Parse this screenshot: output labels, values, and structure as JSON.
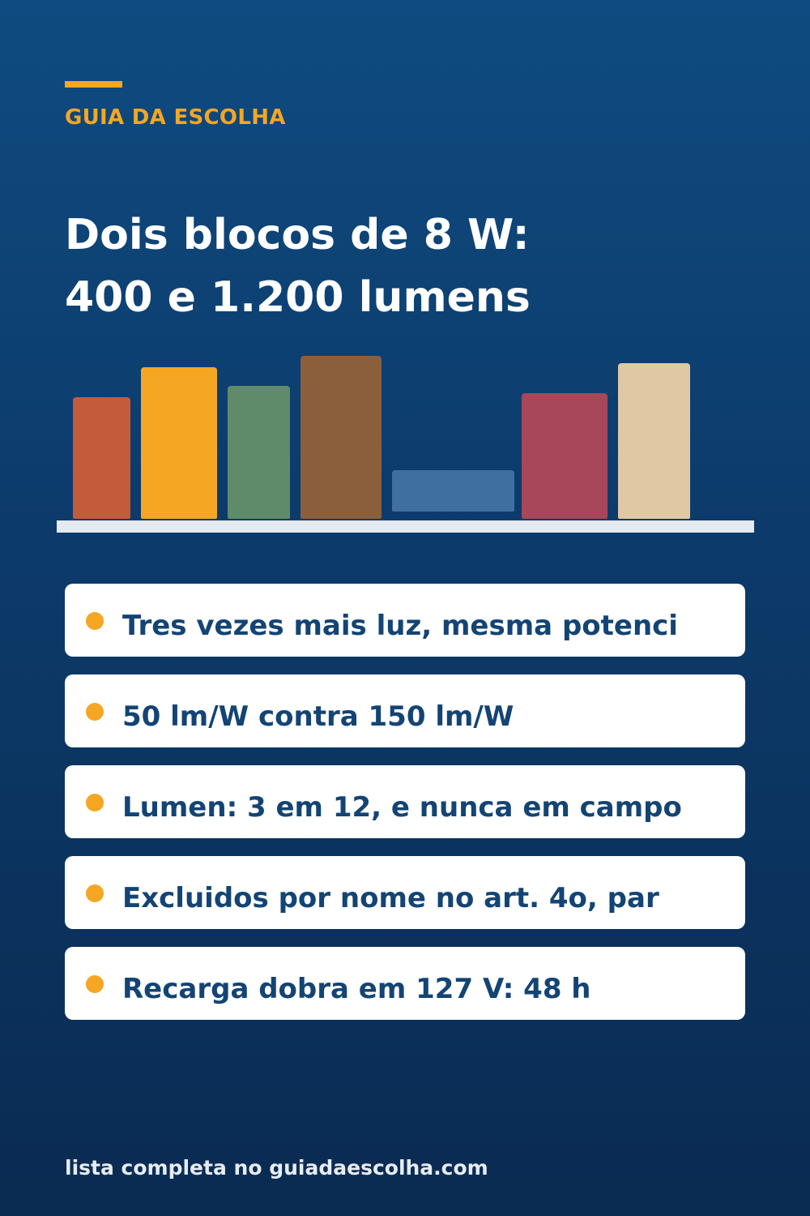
{
  "header": {
    "eyebrow": "GUIA DA ESCOLHA",
    "headline_line1": "Dois blocos de 8 W:",
    "headline_line2": "400 e 1.200 lumens"
  },
  "shelf": {
    "books": [
      {
        "color": "#c45c3c"
      },
      {
        "color": "#f5a623"
      },
      {
        "color": "#5f8b6a"
      },
      {
        "color": "#8b5e3c"
      },
      {
        "color": "#3e6fa0"
      },
      {
        "color": "#a8465a"
      },
      {
        "color": "#dfc8a3"
      }
    ],
    "shelf_color": "#e5e9f0"
  },
  "items": [
    {
      "text": "Tres vezes mais luz, mesma potenci"
    },
    {
      "text": "50 lm/W contra 150 lm/W"
    },
    {
      "text": "Lumen: 3 em 12, e nunca em campo"
    },
    {
      "text": "Excluidos por nome no art. 4o, par"
    },
    {
      "text": "Recarga dobra em 127 V: 48 h"
    }
  ],
  "footer": {
    "text": "lista completa no guiadaescolha.com"
  },
  "colors": {
    "accent": "#f5a623",
    "background_top": "#0f4b80",
    "background_bottom": "#0a2b52",
    "item_text": "#134474"
  }
}
